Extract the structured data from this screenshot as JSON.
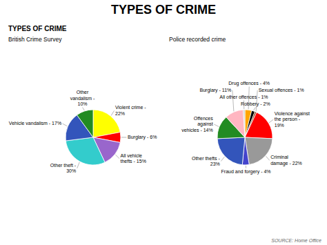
{
  "title": "TYPES OF CRIME",
  "subtitle": "TYPES OF CRIME",
  "annotations": [
    "SOURCE: Home Office"
  ],
  "chart_data": [
    {
      "type": "pie",
      "title": "British Crime Survey",
      "categories": [
        "Violent crime -\n22%",
        "Burglary - 6%",
        "All vehicle\nthefts - 15%",
        "Other theft -\n30%",
        "Vehicle vandalism - 17%",
        "Other\nvandalism -\n10%"
      ],
      "values": [
        22,
        6,
        15,
        30,
        17,
        10
      ],
      "colors": [
        "#FFFF00",
        "#FF0000",
        "#9966CC",
        "#33CCCC",
        "#3355BB",
        "#228B22"
      ]
    },
    {
      "type": "pie",
      "title": "Police recorded crime",
      "categories": [
        "Drug offences - 4%",
        "Robbery - 2%",
        "Sexual offences - 1%",
        "Violence against\nthe person -\n19%",
        "Criminal\ndamage - 22%",
        "Fraud and forgery - 4%",
        "Other thefts -\n23%",
        "Offences\nagainst\nvehicles - 14%",
        "Burglary - 11%",
        "All other offences - 1%"
      ],
      "values": [
        4,
        2,
        1,
        19,
        22,
        4,
        23,
        14,
        11,
        1
      ],
      "colors": [
        "#FFA500",
        "#000000",
        "#8B4513",
        "#FF0000",
        "#999999",
        "#4444CC",
        "#3355BB",
        "#228B22",
        "#FFB6C1",
        "#CCCCCC"
      ]
    }
  ]
}
